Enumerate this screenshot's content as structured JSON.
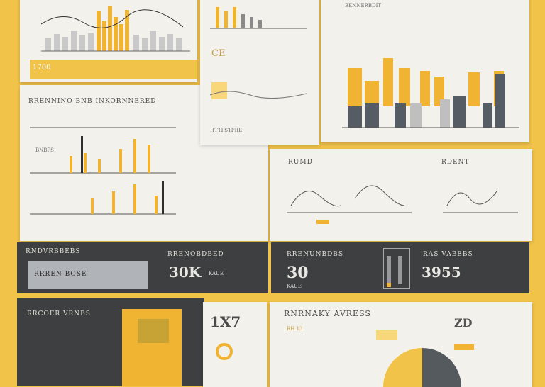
{
  "collage": {
    "card_top_left": {
      "legend_text": "1700"
    },
    "card_left_main": {
      "title": "RRENNINO BNB INKORNNERED",
      "sub_title": "BNBPS"
    },
    "card_top_mid": {
      "heading": "CE",
      "caption": "HTTPSTFIIE"
    },
    "card_top_right": {
      "heading": "BENNERBDIT"
    },
    "card_mid_right": {
      "heading_left": "RUMD",
      "heading_right": "RDENT"
    },
    "band": {
      "left_title": "RNDVRBBEBS",
      "left_box_text": "RRREN BOSE",
      "mid_title": "RRENOBDBED",
      "mid_big": "30K",
      "mid_small": "KAUE",
      "center_big": "30",
      "center_title": "RRENUNBDBS",
      "right_title": "RAS VABEBS",
      "right_big": "3955"
    },
    "bottom_left": {
      "title": "RRCOER VRNBS"
    },
    "bottom_mid": {
      "big": "1X7"
    },
    "bottom_right": {
      "title": "RNRNAKY AVRESS",
      "date": "RH 13",
      "big": "ZD"
    }
  }
}
